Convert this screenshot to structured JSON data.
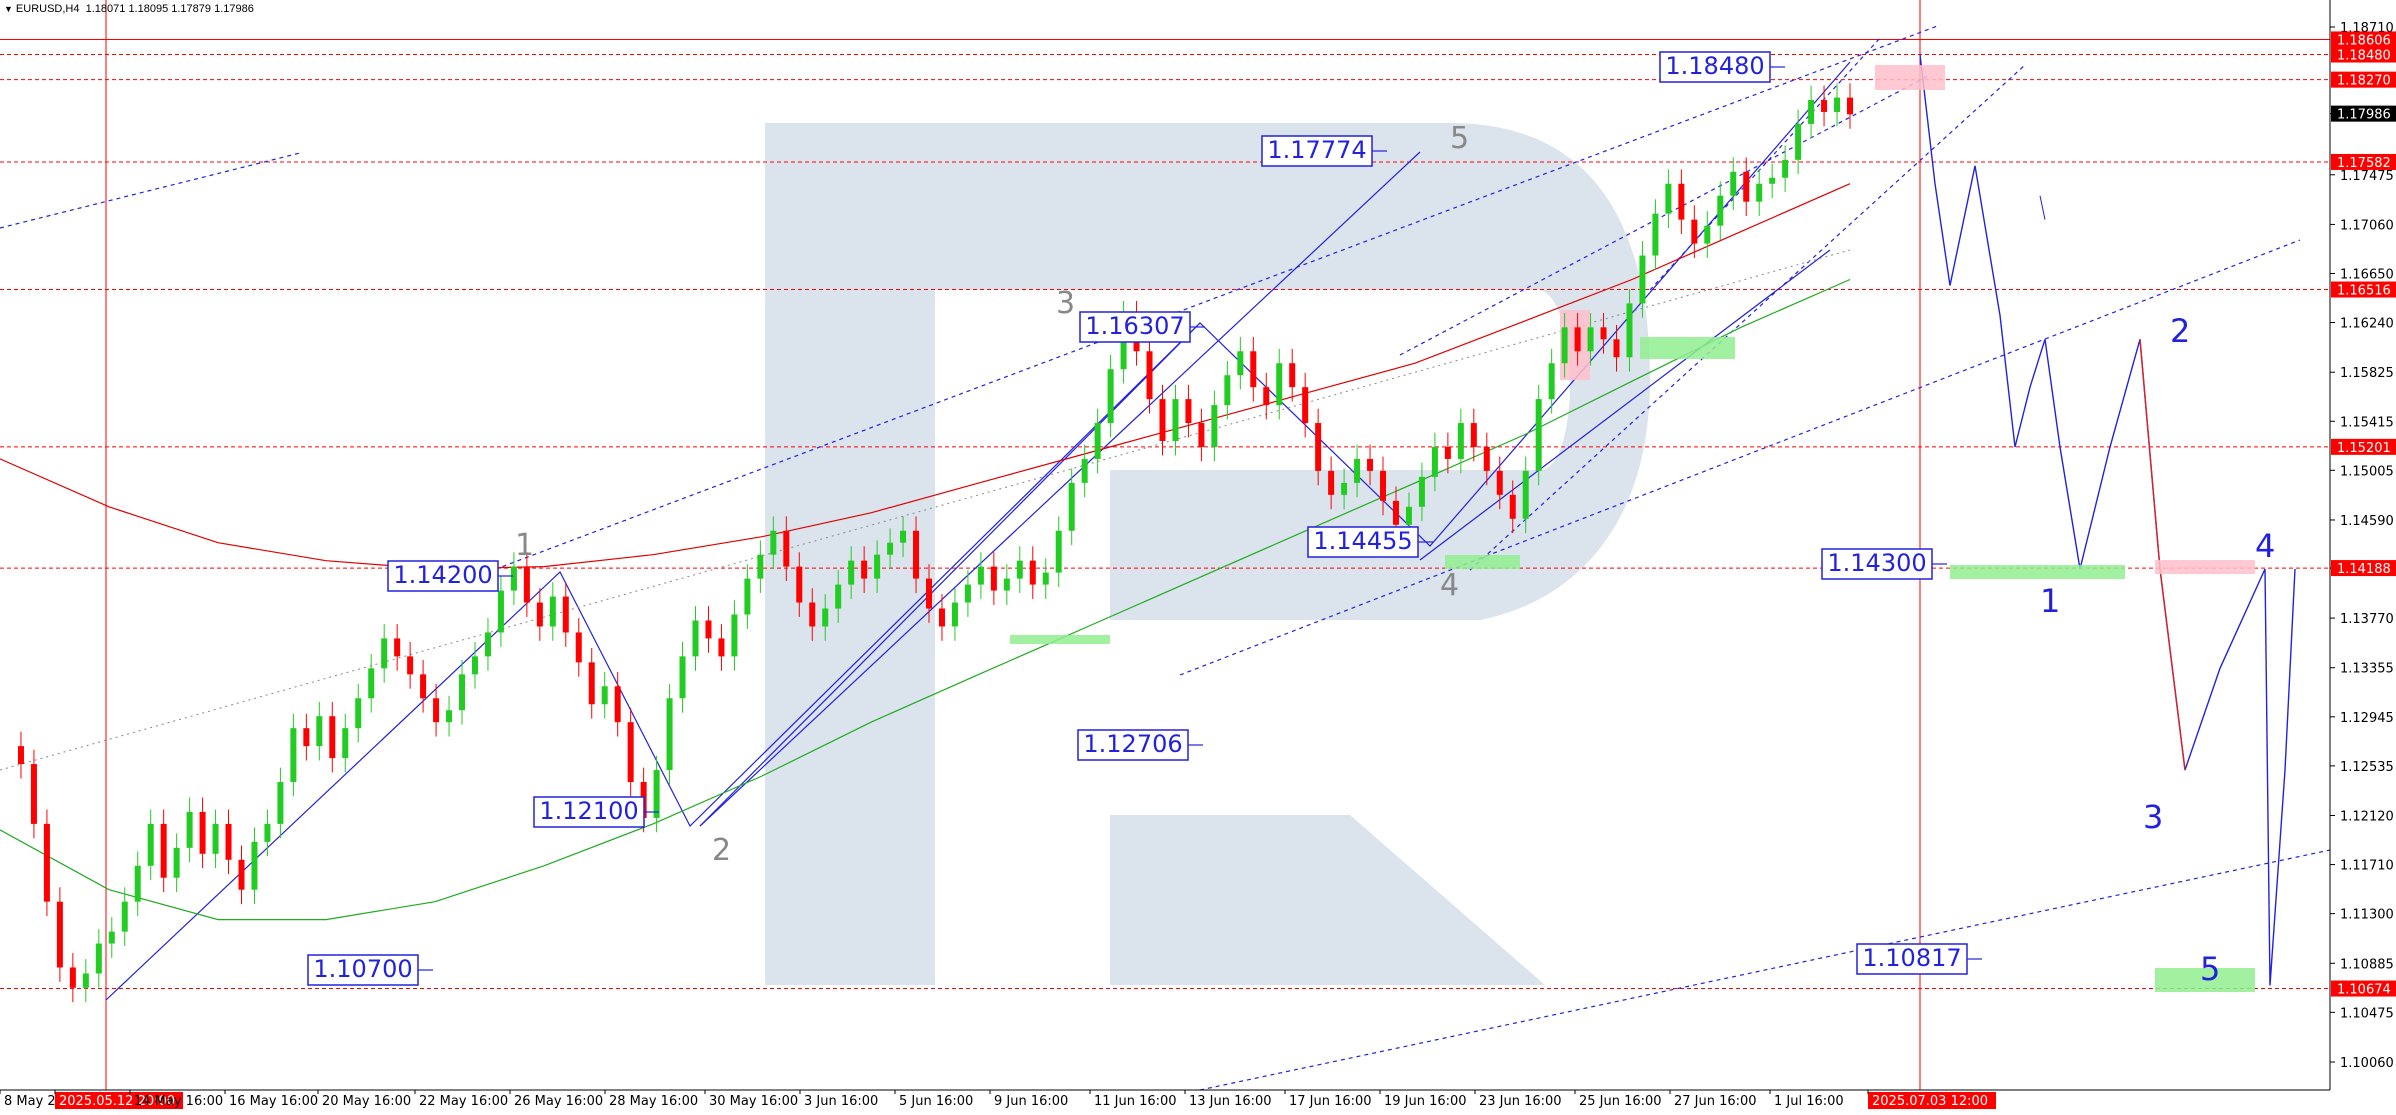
{
  "header": {
    "symbol_tf": "EURUSD,H4",
    "ohlc": "1.18071 1.18095 1.17879 1.17986"
  },
  "chart_data": {
    "type": "candlestick",
    "symbol": "EURUSD",
    "timeframe": "H4",
    "ylim": [
      1.098,
      1.19
    ],
    "price_ticks": [
      "1.18710",
      "1.17986",
      "1.17475",
      "1.17060",
      "1.16650",
      "1.16240",
      "1.15825",
      "1.15415",
      "1.15005",
      "1.14590",
      "1.14188",
      "1.13770",
      "1.13355",
      "1.12945",
      "1.12535",
      "1.12120",
      "1.11710",
      "1.11300",
      "1.10885",
      "1.10475",
      "1.10060"
    ],
    "marked_price_tags": [
      "1.18606",
      "1.18480",
      "1.18270",
      "1.17582",
      "1.16516",
      "1.15201",
      "1.14188",
      "1.10674"
    ],
    "current_price_tag": "1.17986",
    "time_ticks": [
      "8 May 20",
      "2025.05.12 20:00",
      "14 May 16:00",
      "16 May 16:00",
      "20 May 16:00",
      "22 May 16:00",
      "26 May 16:00",
      "28 May 16:00",
      "30 May 16:00",
      "3 Jun 16:00",
      "5 Jun 16:00",
      "9 Jun 16:00",
      "11 Jun 16:00",
      "13 Jun 16:00",
      "17 Jun 16:00",
      "19 Jun 16:00",
      "23 Jun 16:00",
      "25 Jun 16:00",
      "27 Jun 16:00",
      "1 Jul 16:00",
      "2025.07.03 12:00"
    ],
    "highlighted_times": [
      "2025.05.12 20:00",
      "2025.07.03 12:00"
    ],
    "price_path": [
      1.127,
      1.1255,
      1.1205,
      1.114,
      1.1085,
      1.1068,
      1.108,
      1.1105,
      1.1115,
      1.114,
      1.117,
      1.1205,
      1.116,
      1.1185,
      1.1215,
      1.118,
      1.1205,
      1.1175,
      1.115,
      1.119,
      1.1205,
      1.124,
      1.1285,
      1.127,
      1.1295,
      1.126,
      1.1285,
      1.131,
      1.1335,
      1.136,
      1.1345,
      1.133,
      1.131,
      1.129,
      1.13,
      1.133,
      1.1345,
      1.1365,
      1.14,
      1.142,
      1.139,
      1.137,
      1.1395,
      1.1365,
      1.134,
      1.1305,
      1.132,
      1.129,
      1.124,
      1.121,
      1.125,
      1.131,
      1.1345,
      1.1375,
      1.136,
      1.1345,
      1.138,
      1.141,
      1.143,
      1.145,
      1.142,
      1.139,
      1.137,
      1.1385,
      1.1405,
      1.1425,
      1.141,
      1.143,
      1.144,
      1.145,
      1.141,
      1.1385,
      1.137,
      1.139,
      1.1405,
      1.142,
      1.14,
      1.141,
      1.1425,
      1.1405,
      1.1415,
      1.145,
      1.149,
      1.151,
      1.154,
      1.1585,
      1.163,
      1.16,
      1.156,
      1.1525,
      1.156,
      1.154,
      1.152,
      1.1555,
      1.158,
      1.16,
      1.157,
      1.1555,
      1.159,
      1.157,
      1.154,
      1.15,
      1.148,
      1.149,
      1.151,
      1.15,
      1.1475,
      1.1455,
      1.147,
      1.1495,
      1.152,
      1.151,
      1.154,
      1.152,
      1.15,
      1.148,
      1.146,
      1.15,
      1.156,
      1.159,
      1.162,
      1.16,
      1.162,
      1.161,
      1.1595,
      1.164,
      1.168,
      1.1715,
      1.174,
      1.171,
      1.169,
      1.1705,
      1.173,
      1.175,
      1.1725,
      1.174,
      1.1745,
      1.176,
      1.179,
      1.181,
      1.18,
      1.1812,
      1.1798
    ],
    "moving_averages": [
      {
        "color": "#e00000",
        "values": [
          1.151,
          1.147,
          1.144,
          1.1425,
          1.1418,
          1.142,
          1.143,
          1.1445,
          1.1465,
          1.149,
          1.1515,
          1.154,
          1.1565,
          1.159,
          1.1625,
          1.166,
          1.17,
          1.174
        ]
      },
      {
        "color": "#22aa22",
        "values": [
          1.12,
          1.115,
          1.1125,
          1.1125,
          1.114,
          1.117,
          1.1205,
          1.1245,
          1.129,
          1.133,
          1.137,
          1.141,
          1.145,
          1.149,
          1.153,
          1.1575,
          1.162,
          1.166
        ]
      }
    ],
    "annotations": [
      {
        "type": "price_label",
        "text": "1.18480",
        "value": 1.1848
      },
      {
        "type": "price_label",
        "text": "1.17774",
        "value": 1.17774
      },
      {
        "type": "price_label",
        "text": "1.16307",
        "value": 1.16307
      },
      {
        "type": "price_label",
        "text": "1.14455",
        "value": 1.14455
      },
      {
        "type": "price_label",
        "text": "1.14200",
        "value": 1.142
      },
      {
        "type": "price_label",
        "text": "1.12706",
        "value": 1.12706
      },
      {
        "type": "price_label",
        "text": "1.12100",
        "value": 1.121
      },
      {
        "type": "price_label",
        "text": "1.10700",
        "value": 1.107
      },
      {
        "type": "price_label",
        "text": "1.14300",
        "value": 1.143
      },
      {
        "type": "price_label",
        "text": "1.10817",
        "value": 1.10817
      }
    ],
    "wave_labels_past": [
      "1",
      "2",
      "3",
      "4",
      "5"
    ],
    "wave_labels_forecast": [
      "1",
      "2",
      "3",
      "4",
      "5"
    ],
    "forecast_path": [
      1.1848,
      1.174,
      1.1655,
      1.1755,
      1.163,
      1.152,
      1.157,
      1.161,
      1.152,
      1.1418,
      1.152,
      1.161,
      1.1418,
      1.125,
      1.1335,
      1.1418,
      1.107,
      1.125,
      1.1418
    ],
    "colors": {
      "bull_candle": "#22cc22",
      "bear_candle": "#ff0000",
      "level_line": "#ff0000",
      "trend_line": "#2222dd",
      "watermark": "#dbe3ec",
      "zone_green": "#90ee90",
      "zone_pink": "#ffc0cb"
    }
  }
}
